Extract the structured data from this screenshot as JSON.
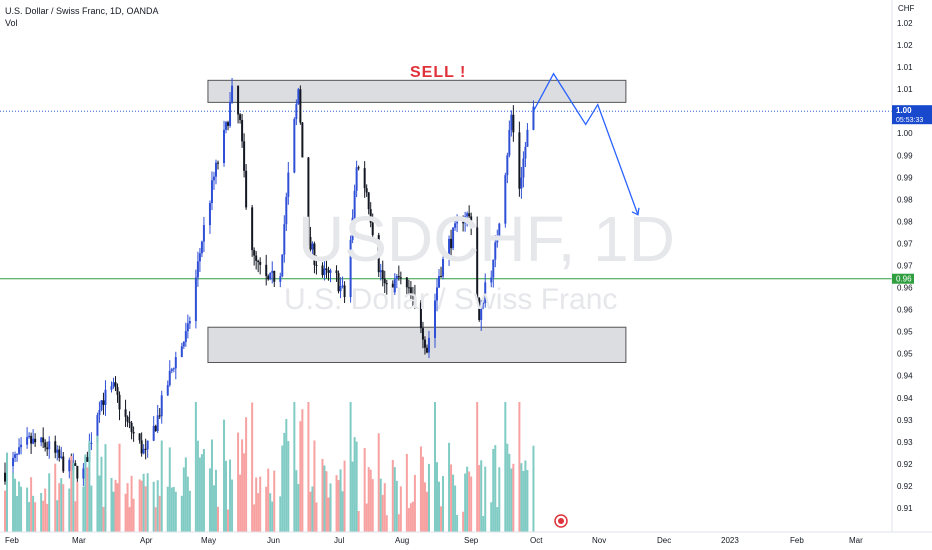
{
  "header": {
    "title": "U.S. Dollar / Swiss Franc, 1D, OANDA",
    "indicator": "Vol"
  },
  "watermark": {
    "symbol": "USDCHF, 1D",
    "name": "U.S. Dollar / Swiss Franc"
  },
  "annotation": {
    "text": "SELL !",
    "color": "#e0323a"
  },
  "price_axis": {
    "currency": "CHF",
    "current_price": "1.00",
    "countdown": "05:53:33",
    "level_label": "0.96",
    "ticks": [
      "1.02",
      "1.02",
      "1.01",
      "1.01",
      "1.00",
      "1.00",
      "0.99",
      "0.99",
      "0.98",
      "0.98",
      "0.97",
      "0.97",
      "0.96",
      "0.96",
      "0.95",
      "0.95",
      "0.94",
      "0.94",
      "0.93",
      "0.93",
      "0.92",
      "0.92",
      "0.91"
    ]
  },
  "time_axis": {
    "labels": [
      "Feb",
      "Mar",
      "Apr",
      "May",
      "Jun",
      "Jul",
      "Aug",
      "Sep",
      "Oct",
      "Nov",
      "Dec",
      "2023",
      "Feb",
      "Mar"
    ]
  },
  "colors": {
    "up": "#2e4fd6",
    "down": "#131722",
    "vol_up": "#80cbc4",
    "vol_down": "#f7a1a1",
    "support_line": "#2f9e3f",
    "projection": "#2962ff",
    "zone_fill": "#dcdde0",
    "last_price": "#1848cc"
  },
  "chart_data": {
    "type": "candlestick",
    "title": "U.S. Dollar / Swiss Franc, 1D, OANDA",
    "y_range": [
      0.9075,
      1.0225
    ],
    "x_range": [
      "2022-01-20",
      "2023-03-25"
    ],
    "grid": false,
    "price_path": [
      [
        "2022-01-20",
        0.918
      ],
      [
        "2022-02-01",
        0.925
      ],
      [
        "2022-02-10",
        0.924
      ],
      [
        "2022-02-20",
        0.919
      ],
      [
        "2022-02-28",
        0.918
      ],
      [
        "2022-03-08",
        0.934
      ],
      [
        "2022-03-15",
        0.937
      ],
      [
        "2022-03-22",
        0.929
      ],
      [
        "2022-03-31",
        0.922
      ],
      [
        "2022-04-07",
        0.932
      ],
      [
        "2022-04-14",
        0.943
      ],
      [
        "2022-04-21",
        0.95
      ],
      [
        "2022-04-28",
        0.971
      ],
      [
        "2022-05-04",
        0.985
      ],
      [
        "2022-05-10",
        0.996
      ],
      [
        "2022-05-13",
        1.004
      ],
      [
        "2022-05-17",
        0.997
      ],
      [
        "2022-05-20",
        0.98
      ],
      [
        "2022-05-24",
        0.966
      ],
      [
        "2022-05-31",
        0.961
      ],
      [
        "2022-06-06",
        0.964
      ],
      [
        "2022-06-10",
        0.985
      ],
      [
        "2022-06-15",
        1.005
      ],
      [
        "2022-06-20",
        0.97
      ],
      [
        "2022-06-27",
        0.963
      ],
      [
        "2022-07-04",
        0.962
      ],
      [
        "2022-07-08",
        0.958
      ],
      [
        "2022-07-12",
        0.975
      ],
      [
        "2022-07-14",
        0.988
      ],
      [
        "2022-07-19",
        0.982
      ],
      [
        "2022-07-25",
        0.965
      ],
      [
        "2022-07-29",
        0.959
      ],
      [
        "2022-08-04",
        0.962
      ],
      [
        "2022-08-10",
        0.958
      ],
      [
        "2022-08-15",
        0.952
      ],
      [
        "2022-08-18",
        0.946
      ],
      [
        "2022-08-24",
        0.963
      ],
      [
        "2022-08-29",
        0.97
      ],
      [
        "2022-09-06",
        0.977
      ],
      [
        "2022-09-09",
        0.975
      ],
      [
        "2022-09-13",
        0.952
      ],
      [
        "2022-09-16",
        0.961
      ],
      [
        "2022-09-20",
        0.965
      ],
      [
        "2022-09-26",
        0.987
      ],
      [
        "2022-09-29",
        0.999
      ],
      [
        "2022-10-03",
        0.983
      ],
      [
        "2022-10-07",
        0.995
      ],
      [
        "2022-10-10",
        1.0
      ]
    ],
    "volume_note": "volume histogram under price, colored by candle direction",
    "horizontal_level": 0.962,
    "last_price": 1.0,
    "resistance_zone": {
      "from": "2022-05-01",
      "to": "2022-11-25",
      "low": 1.002,
      "high": 1.007
    },
    "support_zone": {
      "from": "2022-05-01",
      "to": "2022-11-25",
      "low": 0.943,
      "high": 0.951
    },
    "projection_path": [
      [
        "2022-10-10",
        1.0
      ],
      [
        "2022-10-20",
        1.0085
      ],
      [
        "2022-11-05",
        0.997
      ],
      [
        "2022-11-11",
        1.0015
      ],
      [
        "2022-12-01",
        0.9765
      ]
    ]
  }
}
